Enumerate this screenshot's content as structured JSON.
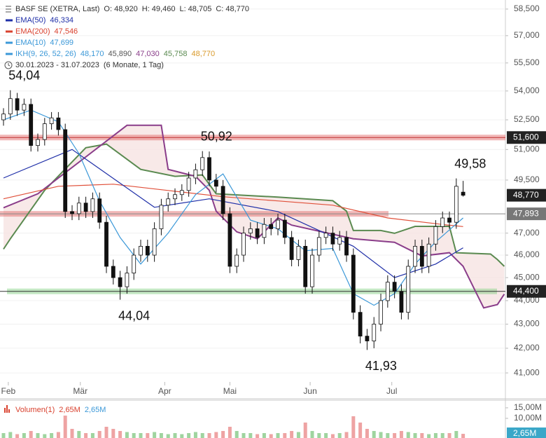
{
  "header": {
    "symbol": "BASF SE (XETRA, Last)",
    "ohlc": [
      "O: 48,920",
      "H: 49,460",
      "L: 48,705",
      "C: 48,770"
    ],
    "indicators": [
      {
        "name": "EMA(50)",
        "values": [
          "46,334"
        ],
        "colors": [
          "#1f2fa8"
        ]
      },
      {
        "name": "EMA(200)",
        "values": [
          "47,546"
        ],
        "colors": [
          "#d9412e"
        ]
      },
      {
        "name": "EMA(10)",
        "values": [
          "47,699"
        ],
        "colors": [
          "#3b98d8"
        ]
      },
      {
        "name": "IKH(9, 26, 52, 26)",
        "values": [
          "48,170",
          "45,890",
          "47,030",
          "45,758",
          "48,770"
        ],
        "colors": [
          "#3b98d8",
          "#555555",
          "#8a3d8a",
          "#5a8a50",
          "#d99a2b"
        ]
      }
    ],
    "range": "30.01.2023 - 31.07.2023",
    "period": "(6 Monate, 1 Tag)"
  },
  "chart_data": {
    "type": "candlestick",
    "log_scale": true,
    "grid": true,
    "xlim": [
      -0.51,
      73.16
    ],
    "xticks": [
      {
        "value": 0.7,
        "label": "Feb"
      },
      {
        "value": 11.2,
        "label": "Mär"
      },
      {
        "value": 23.5,
        "label": "Apr"
      },
      {
        "value": 33,
        "label": "Mai"
      },
      {
        "value": 44.7,
        "label": "Jun"
      },
      {
        "value": 56.6,
        "label": "Jul"
      }
    ],
    "ylim": [
      40.64,
      59.02
    ],
    "yticks": [
      {
        "value": 58.5,
        "label": "58,500"
      },
      {
        "value": 57,
        "label": "57,000"
      },
      {
        "value": 55.5,
        "label": "55,500"
      },
      {
        "value": 54,
        "label": "54,000"
      },
      {
        "value": 52.5,
        "label": "52,500"
      },
      {
        "value": 51,
        "label": "51,000"
      },
      {
        "value": 49.5,
        "label": "49,500"
      },
      {
        "value": 47,
        "label": "47,000"
      },
      {
        "value": 46,
        "label": "46,000"
      },
      {
        "value": 45,
        "label": "45,000"
      },
      {
        "value": 44,
        "label": "44,000"
      },
      {
        "value": 43,
        "label": "43,000"
      },
      {
        "value": 42,
        "label": "42,000"
      },
      {
        "value": 41,
        "label": "41,000"
      }
    ],
    "open": [
      52.5,
      52.8,
      53.6,
      53.0,
      53.3,
      51.2,
      51.5,
      52.3,
      52.6,
      52.0,
      48.0,
      47.9,
      48.4,
      48.0,
      48.6,
      47.5,
      45.5,
      45.0,
      44.6,
      45.2,
      46.0,
      46.4,
      46.0,
      47.2,
      48.3,
      48.6,
      48.8,
      49.0,
      49.6,
      50.0,
      50.6,
      49.5,
      49.2,
      47.9,
      45.5,
      46.0,
      47.0,
      47.2,
      46.8,
      47.4,
      47.2,
      47.6,
      46.8,
      45.8,
      46.4,
      44.6,
      46.0,
      46.8,
      47.0,
      46.5,
      46.8,
      46.0,
      43.5,
      42.5,
      42.3,
      43.0,
      44.0,
      44.8,
      44.4,
      43.5,
      45.5,
      46.4,
      45.5,
      46.5,
      47.3,
      47.7,
      47.5,
      48.92
    ],
    "high": [
      53.1,
      54.04,
      53.9,
      53.6,
      53.6,
      51.8,
      52.6,
      52.9,
      52.9,
      52.3,
      48.3,
      48.7,
      48.7,
      48.9,
      48.9,
      47.8,
      45.8,
      45.3,
      45.5,
      46.3,
      46.7,
      46.7,
      47.5,
      48.6,
      48.9,
      49.1,
      49.3,
      49.9,
      50.3,
      50.92,
      50.9,
      49.8,
      49.5,
      48.2,
      46.3,
      47.3,
      47.5,
      47.5,
      47.7,
      47.7,
      47.9,
      47.9,
      47.1,
      46.7,
      46.7,
      46.3,
      47.1,
      47.3,
      47.3,
      47.1,
      47.1,
      46.3,
      43.8,
      42.8,
      43.3,
      44.3,
      45.1,
      45.1,
      44.7,
      45.8,
      46.7,
      46.7,
      46.8,
      47.6,
      48.0,
      48.0,
      49.58,
      49.46
    ],
    "low": [
      52.2,
      52.5,
      52.7,
      52.7,
      50.9,
      50.9,
      51.2,
      52.0,
      51.7,
      47.7,
      47.6,
      47.6,
      47.7,
      47.7,
      47.2,
      45.2,
      44.7,
      44.04,
      44.3,
      44.9,
      45.7,
      45.7,
      45.7,
      46.9,
      48.0,
      48.3,
      48.5,
      48.7,
      49.3,
      49.7,
      49.2,
      48.9,
      47.6,
      45.2,
      45.2,
      45.7,
      46.7,
      46.5,
      46.5,
      46.9,
      46.9,
      46.5,
      45.5,
      45.5,
      44.3,
      44.3,
      45.7,
      46.5,
      46.2,
      46.2,
      45.7,
      43.2,
      42.2,
      41.93,
      42.0,
      42.7,
      43.7,
      44.1,
      43.2,
      43.2,
      45.2,
      45.2,
      45.2,
      46.2,
      47.0,
      47.2,
      47.2,
      48.705
    ],
    "close": [
      52.8,
      53.6,
      53.0,
      53.3,
      51.2,
      51.5,
      52.3,
      52.6,
      52.0,
      48.0,
      47.9,
      48.4,
      48.0,
      48.6,
      47.5,
      45.5,
      45.0,
      44.6,
      45.2,
      46.0,
      46.4,
      46.0,
      47.2,
      48.3,
      48.6,
      48.8,
      49.0,
      49.6,
      50.0,
      50.6,
      49.5,
      49.2,
      47.9,
      45.5,
      46.0,
      47.0,
      47.2,
      46.8,
      47.4,
      47.2,
      47.6,
      46.8,
      45.8,
      46.4,
      44.6,
      46.0,
      46.8,
      47.0,
      46.5,
      46.8,
      46.0,
      43.5,
      42.5,
      42.3,
      43.0,
      44.0,
      44.8,
      44.4,
      43.5,
      45.5,
      46.4,
      45.5,
      46.5,
      47.3,
      47.7,
      47.5,
      49.2,
      48.77
    ],
    "series": [
      {
        "color": "#e0503a",
        "x": [
          0,
          8,
          16,
          24,
          32,
          40,
          48,
          56,
          64,
          67
        ],
        "values": [
          48.6,
          49.2,
          49.3,
          49.0,
          48.7,
          48.5,
          48.3,
          47.7,
          47.4,
          47.3
        ]
      },
      {
        "color": "#1f2fa8",
        "x": [
          0,
          10,
          22,
          30,
          40,
          51,
          57,
          63,
          67
        ],
        "values": [
          49.6,
          51.0,
          48.2,
          48.6,
          48.0,
          46.4,
          45.0,
          45.6,
          46.33
        ]
      },
      {
        "color": "#3b98d8",
        "x": [
          0,
          4,
          8,
          11,
          14,
          17,
          20,
          24,
          28,
          32,
          36,
          40,
          44,
          48,
          51,
          54,
          57,
          60,
          63,
          67
        ],
        "values": [
          52.5,
          53.0,
          52.4,
          50.8,
          48.5,
          46.8,
          45.6,
          47.0,
          48.8,
          49.8,
          47.6,
          47.2,
          46.2,
          46.3,
          44.3,
          43.8,
          44.3,
          45.6,
          46.6,
          47.7
        ]
      }
    ],
    "cloud": {
      "fill": "#f6e4e2",
      "span_a": {
        "color": "#5a8a50",
        "x": [
          0,
          1,
          6,
          12,
          15,
          20,
          25,
          29,
          31,
          40,
          48,
          50,
          51,
          55,
          57,
          60,
          65,
          66,
          71,
          72,
          73
        ],
        "values": [
          46.27,
          46.74,
          49.01,
          51.09,
          51.27,
          50.02,
          49.68,
          49.75,
          48.84,
          48.68,
          48.51,
          48.02,
          47.12,
          47.12,
          46.99,
          47.31,
          47.31,
          46.11,
          46.05,
          45.8,
          45.5
        ]
      },
      "span_b": {
        "color": "#8a3d8a",
        "x": [
          0,
          5,
          18,
          23,
          24,
          28,
          30,
          31,
          34,
          37,
          40,
          42,
          51,
          57,
          61,
          65,
          67,
          69,
          70,
          72,
          73
        ],
        "values": [
          48.18,
          48.84,
          52.22,
          52.22,
          50.02,
          49.68,
          49.01,
          48.02,
          47.06,
          46.74,
          47.7,
          47.37,
          46.74,
          46.58,
          45.96,
          46.11,
          45.5,
          44.28,
          43.69,
          43.83,
          44.28
        ]
      }
    },
    "levels": [
      {
        "value": 51.6,
        "label": "51,600",
        "color": "#e06060",
        "box": "#222222"
      },
      {
        "value": 47.893,
        "label": "47,893",
        "color": "#e06060",
        "box": "#777777"
      },
      {
        "value": 44.4,
        "label": "44,400",
        "color": "#7ccc7c",
        "box": "#222222"
      }
    ],
    "last": {
      "value": 48.77,
      "label": "48,770",
      "box": "#222222"
    },
    "annotations": [
      {
        "value": 54.04,
        "label": "54,04",
        "kind": "high"
      },
      {
        "value": 50.92,
        "label": "50,92",
        "kind": "high"
      },
      {
        "value": 49.58,
        "label": "49,58",
        "kind": "high"
      },
      {
        "value": 44.04,
        "label": "44,04",
        "kind": "low"
      },
      {
        "value": 41.93,
        "label": "41,93",
        "kind": "low"
      }
    ],
    "volume": {
      "type": "bar",
      "title": "Volumen(1)",
      "header_values": [
        "2,65M",
        "2,65M"
      ],
      "header_colors": [
        "#d9412e",
        "#3b98d8"
      ],
      "values": [
        3,
        3.5,
        2.5,
        3,
        4,
        3,
        2.5,
        3,
        3.5,
        11.3,
        5,
        4,
        3,
        3,
        4,
        6,
        5,
        4,
        3.5,
        3,
        3,
        3,
        3.5,
        3,
        2.5,
        3,
        2.5,
        3,
        3.5,
        3,
        3,
        3.5,
        4,
        6,
        4,
        3,
        3,
        2.5,
        3,
        2.5,
        3,
        3,
        4,
        3.5,
        8,
        4,
        3,
        3,
        2.5,
        3,
        3.5,
        11,
        8,
        5,
        4,
        3.5,
        3,
        3,
        4,
        3.5,
        3,
        3,
        2.5,
        3,
        3,
        3,
        4,
        2.65
      ],
      "ylim": [
        0,
        18.3
      ],
      "yticks": [
        {
          "value": 15,
          "label": "15,00M"
        },
        {
          "value": 10,
          "label": "10,00M"
        }
      ],
      "last": {
        "value": 2.65,
        "label": "2,65M",
        "box": "#3aa7c8"
      }
    }
  }
}
